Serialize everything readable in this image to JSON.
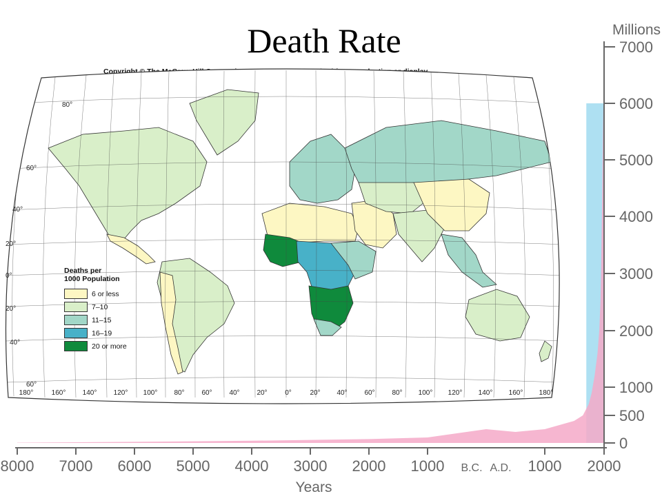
{
  "slide": {
    "title": "Death Rate"
  },
  "map": {
    "copyright": "Copyright © The McGraw-Hill Companies, Inc. Permission required for reproduction or display.",
    "legend": {
      "title_line1": "Deaths per",
      "title_line2": "1000 Population",
      "items": [
        {
          "label": "6 or less",
          "color": "#fdf7c3"
        },
        {
          "label": "7–10",
          "color": "#d9efc9"
        },
        {
          "label": "11–15",
          "color": "#a2d7c8"
        },
        {
          "label": "16–19",
          "color": "#48b1c8"
        },
        {
          "label": "20 or more",
          "color": "#0f8a3c"
        }
      ]
    },
    "lat_labels": [
      "80°",
      "60°",
      "40°",
      "20°",
      "0°",
      "20°",
      "40°",
      "60°"
    ],
    "lon_labels": [
      "180°",
      "160°",
      "140°",
      "120°",
      "100°",
      "80°",
      "60°",
      "40°",
      "20°",
      "0°",
      "20°",
      "40°",
      "60°",
      "80°",
      "100°",
      "120°",
      "140°",
      "160°",
      "180°"
    ]
  },
  "chart_data": {
    "type": "area",
    "title": "",
    "xlabel": "Years",
    "ylabel": "Millions",
    "x_tick_labels": [
      "8000",
      "7000",
      "6000",
      "5000",
      "4000",
      "3000",
      "2000",
      "1000",
      "B.C.",
      "A.D.",
      "1000",
      "2000"
    ],
    "y_tick_labels": [
      "7000",
      "6000",
      "5000",
      "4000",
      "3000",
      "2000",
      "1000",
      "500",
      "0"
    ],
    "ylim": [
      0,
      7000
    ],
    "series": [
      {
        "color": "#f5a9c8",
        "x": [
          -8000,
          -6000,
          -4000,
          -2000,
          -1000,
          0,
          500,
          1000,
          1500,
          1650,
          1750,
          1800,
          1850,
          1900,
          1930,
          1950,
          1960,
          1970,
          1980,
          1990,
          2000
        ],
        "y": [
          5,
          20,
          40,
          70,
          100,
          250,
          200,
          250,
          400,
          500,
          700,
          900,
          1200,
          1600,
          2000,
          2500,
          3000,
          3700,
          4400,
          5300,
          6000
        ]
      }
    ],
    "highlight": {
      "color": "#aee0f2",
      "x_from": 1650,
      "x_to": 2000,
      "value": 6000
    }
  }
}
